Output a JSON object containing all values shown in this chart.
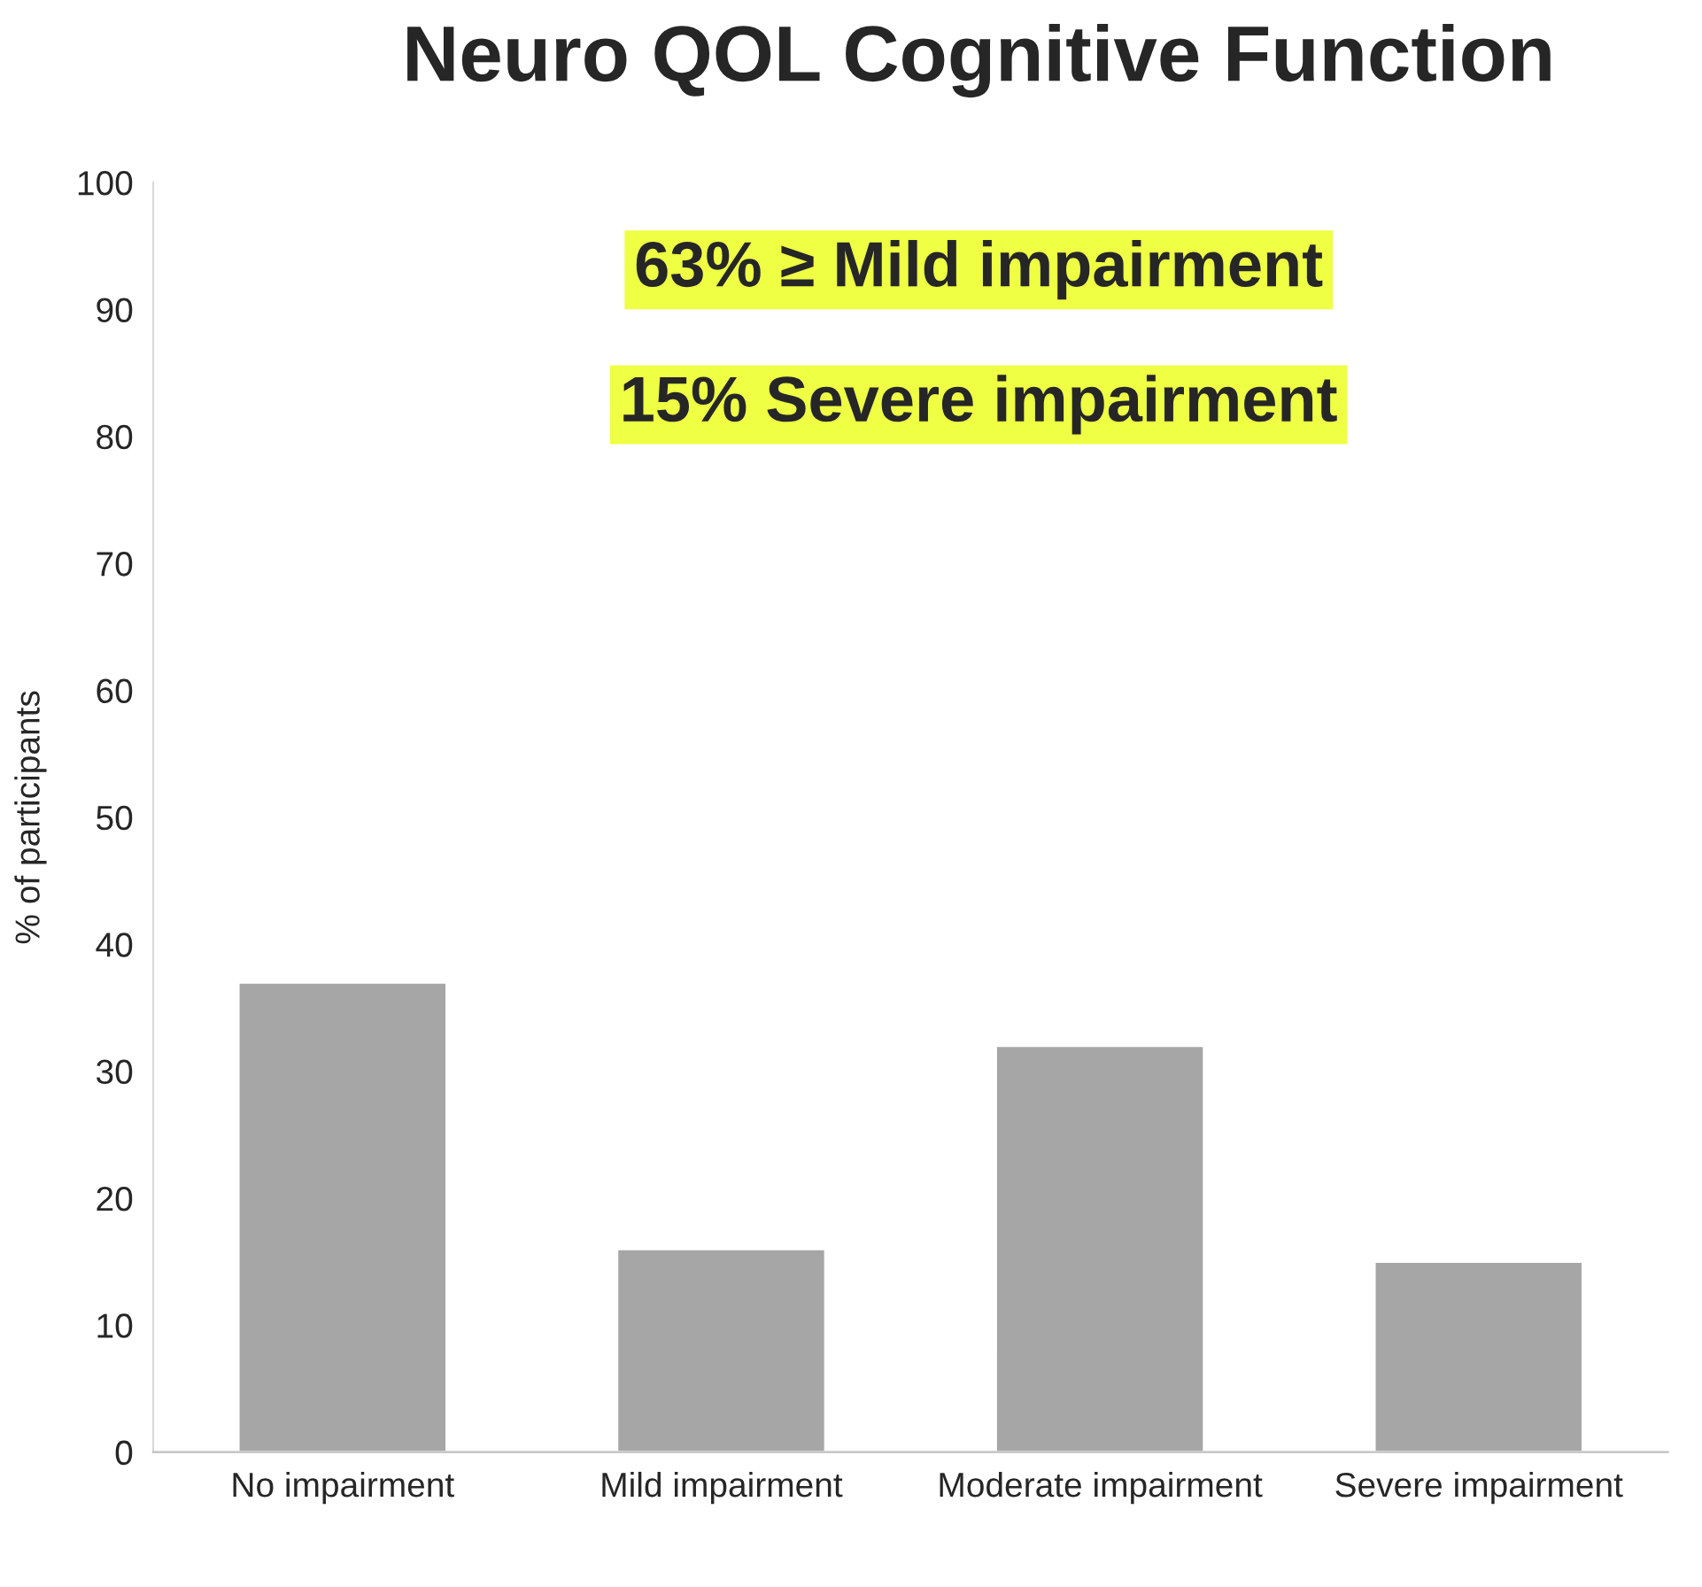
{
  "chart_data": {
    "type": "bar",
    "title": "Neuro QOL Cognitive Function",
    "ylabel": "% of participants",
    "categories": [
      "No impairment",
      "Mild impairment",
      "Moderate impairment",
      "Severe impairment"
    ],
    "values": [
      37,
      16,
      32,
      15
    ],
    "color": "#a6a6a6",
    "ylim": [
      0,
      100
    ],
    "yticks": [
      0,
      10,
      20,
      30,
      40,
      50,
      60,
      70,
      80,
      90,
      100
    ],
    "grid": false,
    "annotations": [
      "63% ≥ Mild impairment",
      "15% Severe impairment"
    ]
  }
}
